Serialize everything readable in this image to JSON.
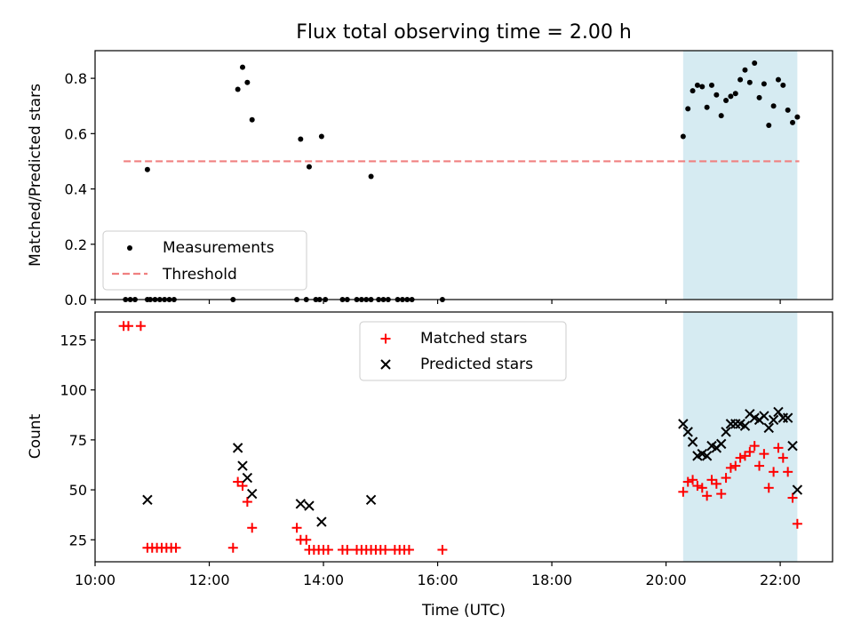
{
  "chart_data": [
    {
      "type": "scatter",
      "title": "Flux total observing time = 2.00 h",
      "ylabel": "Matched/Predicted stars",
      "xlabel": "",
      "xlim": [
        "10:00",
        "22:55"
      ],
      "ylim": [
        0,
        0.9
      ],
      "yticks": [
        "0.0",
        "0.2",
        "0.4",
        "0.6",
        "0.8"
      ],
      "legend": {
        "placement": "lower-left",
        "entries": [
          "Measurements",
          "Threshold"
        ]
      },
      "threshold": {
        "name": "Threshold",
        "value": 0.5,
        "x_range": [
          "10:30",
          "22:20"
        ],
        "color": "#f08080"
      },
      "highlight_span": {
        "x_range": [
          "20:18",
          "22:18"
        ],
        "color": "#add8e6"
      },
      "series": [
        {
          "name": "Measurements",
          "color": "#000000",
          "marker": "dot",
          "points": [
            [
              "10:32",
              0
            ],
            [
              "10:37",
              0
            ],
            [
              "10:42",
              0
            ],
            [
              "10:55",
              0
            ],
            [
              "10:58",
              0
            ],
            [
              "11:03",
              0
            ],
            [
              "11:08",
              0
            ],
            [
              "11:13",
              0
            ],
            [
              "11:18",
              0
            ],
            [
              "11:23",
              0
            ],
            [
              "10:55",
              0.47
            ],
            [
              "12:30",
              0.76
            ],
            [
              "12:35",
              0.84
            ],
            [
              "12:40",
              0.785
            ],
            [
              "12:45",
              0.65
            ],
            [
              "12:25",
              0
            ],
            [
              "13:32",
              0
            ],
            [
              "13:36",
              0.58
            ],
            [
              "13:42",
              0
            ],
            [
              "13:45",
              0.48
            ],
            [
              "13:52",
              0
            ],
            [
              "13:56",
              0
            ],
            [
              "13:58",
              0.59
            ],
            [
              "14:02",
              0
            ],
            [
              "14:20",
              0
            ],
            [
              "14:25",
              0
            ],
            [
              "14:35",
              0
            ],
            [
              "14:40",
              0
            ],
            [
              "14:45",
              0
            ],
            [
              "14:50",
              0
            ],
            [
              "14:50",
              0.445
            ],
            [
              "14:58",
              0
            ],
            [
              "15:03",
              0
            ],
            [
              "15:08",
              0
            ],
            [
              "15:18",
              0
            ],
            [
              "15:23",
              0
            ],
            [
              "15:28",
              0
            ],
            [
              "15:33",
              0
            ],
            [
              "16:05",
              0
            ],
            [
              "20:18",
              0.59
            ],
            [
              "20:23",
              0.69
            ],
            [
              "20:28",
              0.755
            ],
            [
              "20:33",
              0.775
            ],
            [
              "20:38",
              0.77
            ],
            [
              "20:43",
              0.695
            ],
            [
              "20:48",
              0.775
            ],
            [
              "20:53",
              0.74
            ],
            [
              "20:58",
              0.665
            ],
            [
              "21:03",
              0.72
            ],
            [
              "21:08",
              0.735
            ],
            [
              "21:13",
              0.745
            ],
            [
              "21:18",
              0.795
            ],
            [
              "21:23",
              0.83
            ],
            [
              "21:28",
              0.785
            ],
            [
              "21:33",
              0.855
            ],
            [
              "21:38",
              0.73
            ],
            [
              "21:43",
              0.78
            ],
            [
              "21:48",
              0.63
            ],
            [
              "21:53",
              0.7
            ],
            [
              "21:58",
              0.795
            ],
            [
              "22:03",
              0.775
            ],
            [
              "22:08",
              0.685
            ],
            [
              "22:13",
              0.64
            ],
            [
              "22:18",
              0.66
            ]
          ]
        }
      ]
    },
    {
      "type": "scatter",
      "title": "",
      "ylabel": "Count",
      "xlabel": "Time (UTC)",
      "xlim": [
        "10:00",
        "22:55"
      ],
      "ylim": [
        14,
        139
      ],
      "yticks": [
        "25",
        "50",
        "75",
        "100",
        "125"
      ],
      "xticks": [
        "10:00",
        "12:00",
        "14:00",
        "16:00",
        "18:00",
        "20:00",
        "22:00"
      ],
      "legend": {
        "placement": "upper-center",
        "entries": [
          "Matched stars",
          "Predicted stars"
        ]
      },
      "highlight_span": {
        "x_range": [
          "20:18",
          "22:18"
        ],
        "color": "#add8e6"
      },
      "series": [
        {
          "name": "Matched stars",
          "color": "#ff0000",
          "marker": "plus",
          "points": [
            [
              "10:30",
              132
            ],
            [
              "10:35",
              132
            ],
            [
              "10:48",
              132
            ],
            [
              "10:55",
              21
            ],
            [
              "11:00",
              21
            ],
            [
              "11:05",
              21
            ],
            [
              "11:10",
              21
            ],
            [
              "11:15",
              21
            ],
            [
              "11:20",
              21
            ],
            [
              "11:25",
              21
            ],
            [
              "12:25",
              21
            ],
            [
              "12:30",
              54
            ],
            [
              "12:35",
              52
            ],
            [
              "12:40",
              44
            ],
            [
              "12:45",
              31
            ],
            [
              "13:32",
              31
            ],
            [
              "13:36",
              25
            ],
            [
              "13:42",
              25
            ],
            [
              "13:45",
              20
            ],
            [
              "13:50",
              20
            ],
            [
              "13:55",
              20
            ],
            [
              "14:00",
              20
            ],
            [
              "14:05",
              20
            ],
            [
              "14:20",
              20
            ],
            [
              "14:25",
              20
            ],
            [
              "14:35",
              20
            ],
            [
              "14:40",
              20
            ],
            [
              "14:45",
              20
            ],
            [
              "14:50",
              20
            ],
            [
              "14:55",
              20
            ],
            [
              "15:00",
              20
            ],
            [
              "15:05",
              20
            ],
            [
              "15:15",
              20
            ],
            [
              "15:20",
              20
            ],
            [
              "15:25",
              20
            ],
            [
              "15:30",
              20
            ],
            [
              "16:05",
              20
            ],
            [
              "20:18",
              49
            ],
            [
              "20:23",
              54
            ],
            [
              "20:28",
              55
            ],
            [
              "20:33",
              52
            ],
            [
              "20:38",
              51
            ],
            [
              "20:43",
              47
            ],
            [
              "20:48",
              55
            ],
            [
              "20:53",
              53
            ],
            [
              "20:58",
              48
            ],
            [
              "21:03",
              56
            ],
            [
              "21:08",
              61
            ],
            [
              "21:13",
              62
            ],
            [
              "21:18",
              66
            ],
            [
              "21:23",
              67
            ],
            [
              "21:28",
              69
            ],
            [
              "21:33",
              72
            ],
            [
              "21:38",
              62
            ],
            [
              "21:43",
              68
            ],
            [
              "21:48",
              51
            ],
            [
              "21:53",
              59
            ],
            [
              "21:58",
              71
            ],
            [
              "22:03",
              66
            ],
            [
              "22:08",
              59
            ],
            [
              "22:13",
              46
            ],
            [
              "22:18",
              33
            ]
          ]
        },
        {
          "name": "Predicted stars",
          "color": "#000000",
          "marker": "x",
          "points": [
            [
              "10:55",
              45
            ],
            [
              "12:30",
              71
            ],
            [
              "12:35",
              62
            ],
            [
              "12:40",
              56
            ],
            [
              "12:45",
              48
            ],
            [
              "13:36",
              43
            ],
            [
              "13:45",
              42
            ],
            [
              "13:58",
              34
            ],
            [
              "14:50",
              45
            ],
            [
              "20:18",
              83
            ],
            [
              "20:23",
              79
            ],
            [
              "20:28",
              74
            ],
            [
              "20:33",
              67
            ],
            [
              "20:38",
              68
            ],
            [
              "20:43",
              67
            ],
            [
              "20:48",
              72
            ],
            [
              "20:53",
              71
            ],
            [
              "20:58",
              73
            ],
            [
              "21:03",
              79
            ],
            [
              "21:08",
              83
            ],
            [
              "21:13",
              83
            ],
            [
              "21:18",
              83
            ],
            [
              "21:23",
              82
            ],
            [
              "21:28",
              88
            ],
            [
              "21:33",
              86
            ],
            [
              "21:38",
              85
            ],
            [
              "21:43",
              87
            ],
            [
              "21:48",
              81
            ],
            [
              "21:53",
              85
            ],
            [
              "21:58",
              89
            ],
            [
              "22:03",
              86
            ],
            [
              "22:08",
              86
            ],
            [
              "22:13",
              72
            ],
            [
              "22:18",
              50
            ]
          ]
        }
      ]
    }
  ]
}
